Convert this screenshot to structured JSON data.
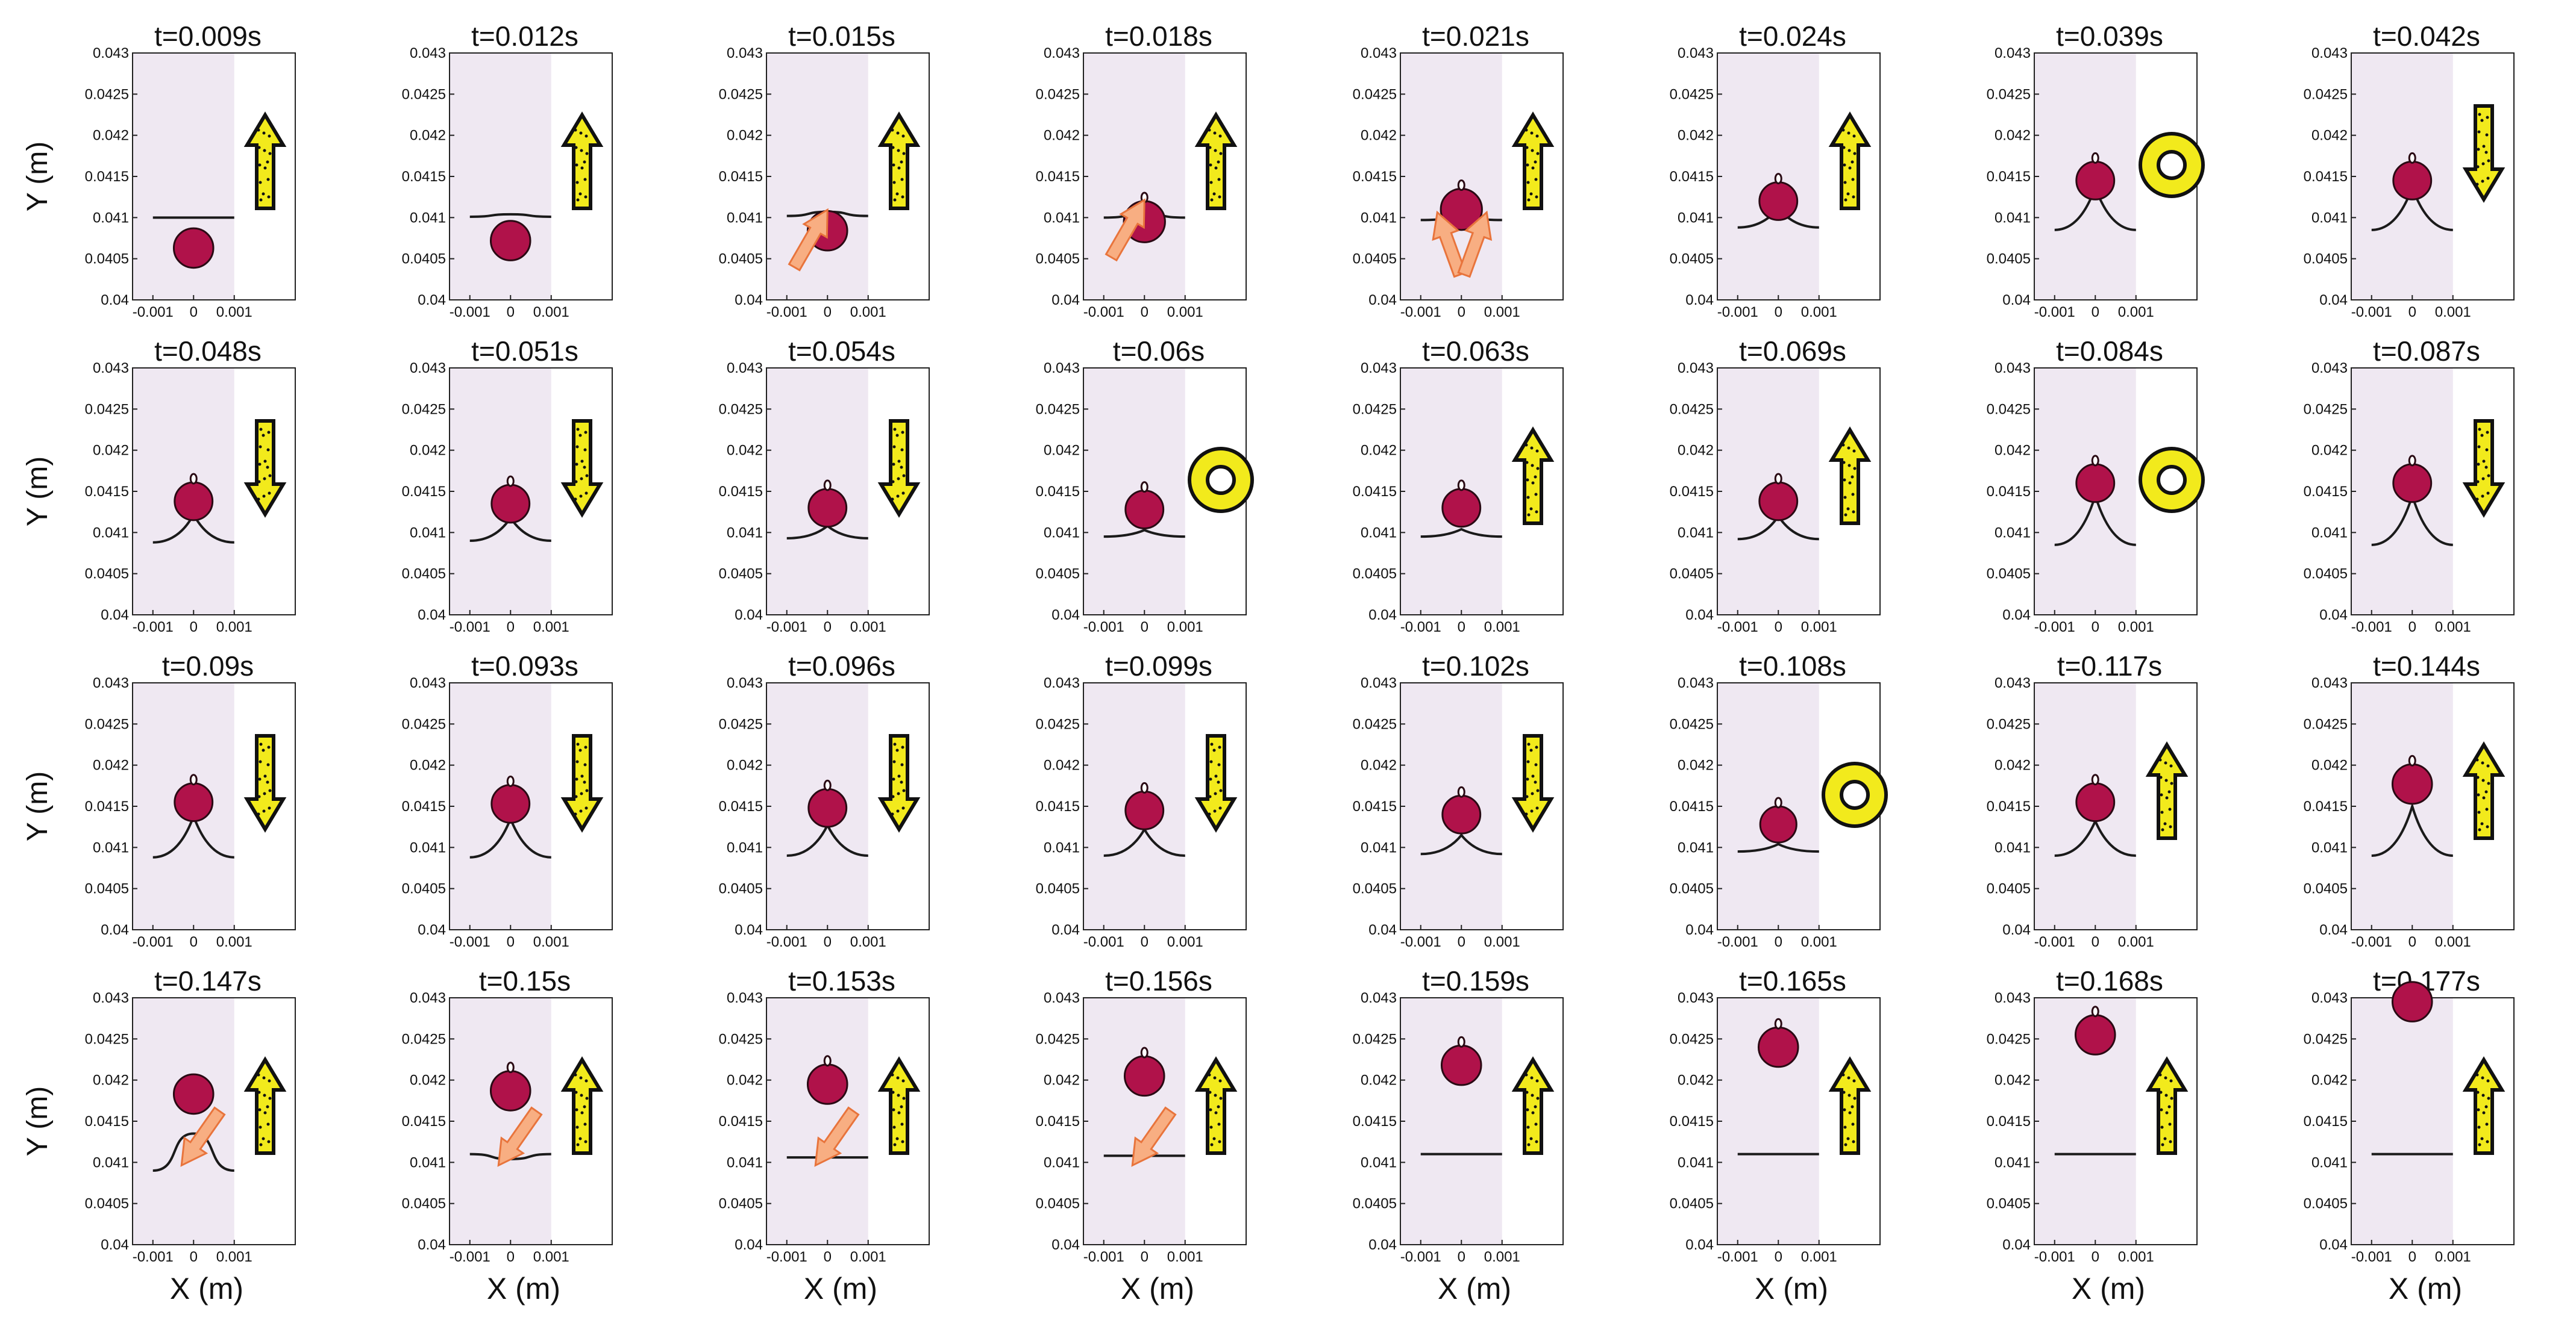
{
  "figure": {
    "y_axis_label": "Y (m)",
    "x_axis_label": "X (m)",
    "x_ticks": [
      "-0.001",
      "0",
      "0.001"
    ],
    "y_ticks": [
      "0.04",
      "0.0405",
      "0.041",
      "0.0415",
      "0.042",
      "0.0425",
      "0.043"
    ],
    "colors": {
      "plot_background": "#efe8f2",
      "droplet": "#b0124a",
      "interface": "#1a1a1a",
      "yellow_marker": "#f2ea1c",
      "orange_arrow": "#f8ae82",
      "orange_arrow_edge": "#e8743c"
    }
  },
  "panels": [
    {
      "time": "t=0.009s",
      "droplet_y": 0.04063,
      "droplet_d": 0.00048,
      "neck": false,
      "interface": {
        "type": "flat",
        "y": 0.041
      },
      "indicator": "up",
      "orange_arrows": []
    },
    {
      "time": "t=0.012s",
      "droplet_y": 0.04072,
      "droplet_d": 0.00048,
      "neck": false,
      "interface": {
        "type": "bump",
        "y": 0.04101,
        "h": 3e-05
      },
      "indicator": "up",
      "orange_arrows": []
    },
    {
      "time": "t=0.015s",
      "droplet_y": 0.04084,
      "droplet_d": 0.00048,
      "neck": false,
      "interface": {
        "type": "bump",
        "y": 0.04102,
        "h": 5e-05
      },
      "indicator": "up",
      "orange_arrows": [
        "top"
      ]
    },
    {
      "time": "t=0.018s",
      "droplet_y": 0.04095,
      "droplet_d": 0.0005,
      "neck": true,
      "interface": {
        "type": "bump",
        "y": 0.041,
        "h": 4e-05
      },
      "indicator": "up",
      "orange_arrows": [
        "top"
      ]
    },
    {
      "time": "t=0.021s",
      "droplet_y": 0.0411,
      "droplet_d": 0.0005,
      "neck": true,
      "interface": {
        "type": "bump",
        "y": 0.04097,
        "h": 3e-05
      },
      "indicator": "up",
      "orange_arrows": [
        "left",
        "right"
      ]
    },
    {
      "time": "t=0.024s",
      "droplet_y": 0.0412,
      "droplet_d": 0.00046,
      "neck": true,
      "interface": {
        "type": "peak",
        "base": 0.04088,
        "peak": 0.04112
      },
      "indicator": "up",
      "orange_arrows": []
    },
    {
      "time": "t=0.039s",
      "droplet_y": 0.04145,
      "droplet_d": 0.00046,
      "neck": true,
      "interface": {
        "type": "peak",
        "base": 0.04085,
        "peak": 0.04137
      },
      "indicator": "ring",
      "orange_arrows": []
    },
    {
      "time": "t=0.042s",
      "droplet_y": 0.04145,
      "droplet_d": 0.00046,
      "neck": true,
      "interface": {
        "type": "peak",
        "base": 0.04085,
        "peak": 0.04137
      },
      "indicator": "down",
      "orange_arrows": []
    },
    {
      "time": "t=0.048s",
      "droplet_y": 0.04138,
      "droplet_d": 0.00046,
      "neck": true,
      "interface": {
        "type": "peak",
        "base": 0.04088,
        "peak": 0.04122
      },
      "indicator": "down",
      "orange_arrows": []
    },
    {
      "time": "t=0.051s",
      "droplet_y": 0.04135,
      "droplet_d": 0.00046,
      "neck": true,
      "interface": {
        "type": "peak",
        "base": 0.0409,
        "peak": 0.04118
      },
      "indicator": "down",
      "orange_arrows": []
    },
    {
      "time": "t=0.054s",
      "droplet_y": 0.0413,
      "droplet_d": 0.00046,
      "neck": true,
      "interface": {
        "type": "peak",
        "base": 0.04093,
        "peak": 0.04108
      },
      "indicator": "down",
      "orange_arrows": []
    },
    {
      "time": "t=0.06s",
      "droplet_y": 0.04128,
      "droplet_d": 0.00046,
      "neck": true,
      "interface": {
        "type": "peak",
        "base": 0.04095,
        "peak": 0.04103
      },
      "indicator": "ring",
      "orange_arrows": []
    },
    {
      "time": "t=0.063s",
      "droplet_y": 0.0413,
      "droplet_d": 0.00046,
      "neck": true,
      "interface": {
        "type": "peak",
        "base": 0.04095,
        "peak": 0.04104
      },
      "indicator": "up",
      "orange_arrows": []
    },
    {
      "time": "t=0.069s",
      "droplet_y": 0.04138,
      "droplet_d": 0.00046,
      "neck": true,
      "interface": {
        "type": "peak",
        "base": 0.04092,
        "peak": 0.0412
      },
      "indicator": "up",
      "orange_arrows": []
    },
    {
      "time": "t=0.084s",
      "droplet_y": 0.0416,
      "droplet_d": 0.00046,
      "neck": true,
      "interface": {
        "type": "peak",
        "base": 0.04085,
        "peak": 0.04145
      },
      "indicator": "ring",
      "orange_arrows": []
    },
    {
      "time": "t=0.087s",
      "droplet_y": 0.0416,
      "droplet_d": 0.00046,
      "neck": true,
      "interface": {
        "type": "peak",
        "base": 0.04085,
        "peak": 0.04145
      },
      "indicator": "down",
      "orange_arrows": []
    },
    {
      "time": "t=0.09s",
      "droplet_y": 0.04155,
      "droplet_d": 0.00046,
      "neck": true,
      "interface": {
        "type": "peak",
        "base": 0.04088,
        "peak": 0.04138
      },
      "indicator": "down",
      "orange_arrows": []
    },
    {
      "time": "t=0.093s",
      "droplet_y": 0.04153,
      "droplet_d": 0.00046,
      "neck": true,
      "interface": {
        "type": "peak",
        "base": 0.04088,
        "peak": 0.04135
      },
      "indicator": "down",
      "orange_arrows": []
    },
    {
      "time": "t=0.096s",
      "droplet_y": 0.04148,
      "droplet_d": 0.00046,
      "neck": true,
      "interface": {
        "type": "peak",
        "base": 0.0409,
        "peak": 0.04127
      },
      "indicator": "down",
      "orange_arrows": []
    },
    {
      "time": "t=0.099s",
      "droplet_y": 0.04145,
      "droplet_d": 0.00046,
      "neck": true,
      "interface": {
        "type": "peak",
        "base": 0.0409,
        "peak": 0.04122
      },
      "indicator": "down",
      "orange_arrows": []
    },
    {
      "time": "t=0.102s",
      "droplet_y": 0.0414,
      "droplet_d": 0.00046,
      "neck": true,
      "interface": {
        "type": "peak",
        "base": 0.04092,
        "peak": 0.04115
      },
      "indicator": "down",
      "orange_arrows": []
    },
    {
      "time": "t=0.108s",
      "droplet_y": 0.04128,
      "droplet_d": 0.00044,
      "neck": true,
      "interface": {
        "type": "peak",
        "base": 0.04095,
        "peak": 0.04104
      },
      "indicator": "ring",
      "orange_arrows": []
    },
    {
      "time": "t=0.117s",
      "droplet_y": 0.04155,
      "droplet_d": 0.00046,
      "neck": true,
      "interface": {
        "type": "peak",
        "base": 0.0409,
        "peak": 0.04132
      },
      "indicator": "up",
      "orange_arrows": []
    },
    {
      "time": "t=0.144s",
      "droplet_y": 0.04177,
      "droplet_d": 0.00048,
      "neck": true,
      "interface": {
        "type": "peak",
        "base": 0.0409,
        "peak": 0.0415
      },
      "indicator": "up",
      "orange_arrows": []
    },
    {
      "time": "t=0.147s",
      "droplet_y": 0.04183,
      "droplet_d": 0.00048,
      "neck": false,
      "interface": {
        "type": "bump",
        "y": 0.0409,
        "h": 0.00045
      },
      "indicator": "up",
      "orange_arrows": [
        "below"
      ]
    },
    {
      "time": "t=0.15s",
      "droplet_y": 0.04187,
      "droplet_d": 0.00048,
      "neck": true,
      "interface": {
        "type": "dip",
        "y": 0.0411,
        "h": 6e-05
      },
      "indicator": "up",
      "orange_arrows": [
        "below"
      ]
    },
    {
      "time": "t=0.153s",
      "droplet_y": 0.04195,
      "droplet_d": 0.00048,
      "neck": true,
      "interface": {
        "type": "flat",
        "y": 0.04106
      },
      "indicator": "up",
      "orange_arrows": [
        "below"
      ]
    },
    {
      "time": "t=0.156s",
      "droplet_y": 0.04205,
      "droplet_d": 0.00048,
      "neck": true,
      "interface": {
        "type": "flat",
        "y": 0.04108
      },
      "indicator": "up",
      "orange_arrows": [
        "below"
      ]
    },
    {
      "time": "t=0.159s",
      "droplet_y": 0.04218,
      "droplet_d": 0.00048,
      "neck": true,
      "interface": {
        "type": "flat",
        "y": 0.0411
      },
      "indicator": "up",
      "orange_arrows": []
    },
    {
      "time": "t=0.165s",
      "droplet_y": 0.0424,
      "droplet_d": 0.00048,
      "neck": true,
      "interface": {
        "type": "flat",
        "y": 0.0411
      },
      "indicator": "up",
      "orange_arrows": []
    },
    {
      "time": "t=0.168s",
      "droplet_y": 0.04255,
      "droplet_d": 0.00048,
      "neck": true,
      "interface": {
        "type": "flat",
        "y": 0.0411
      },
      "indicator": "up",
      "orange_arrows": []
    },
    {
      "time": "t=0.177s",
      "droplet_y": 0.043,
      "droplet_d": 0.00048,
      "neck": false,
      "interface": {
        "type": "flat",
        "y": 0.0411
      },
      "indicator": "up",
      "orange_arrows": []
    }
  ]
}
